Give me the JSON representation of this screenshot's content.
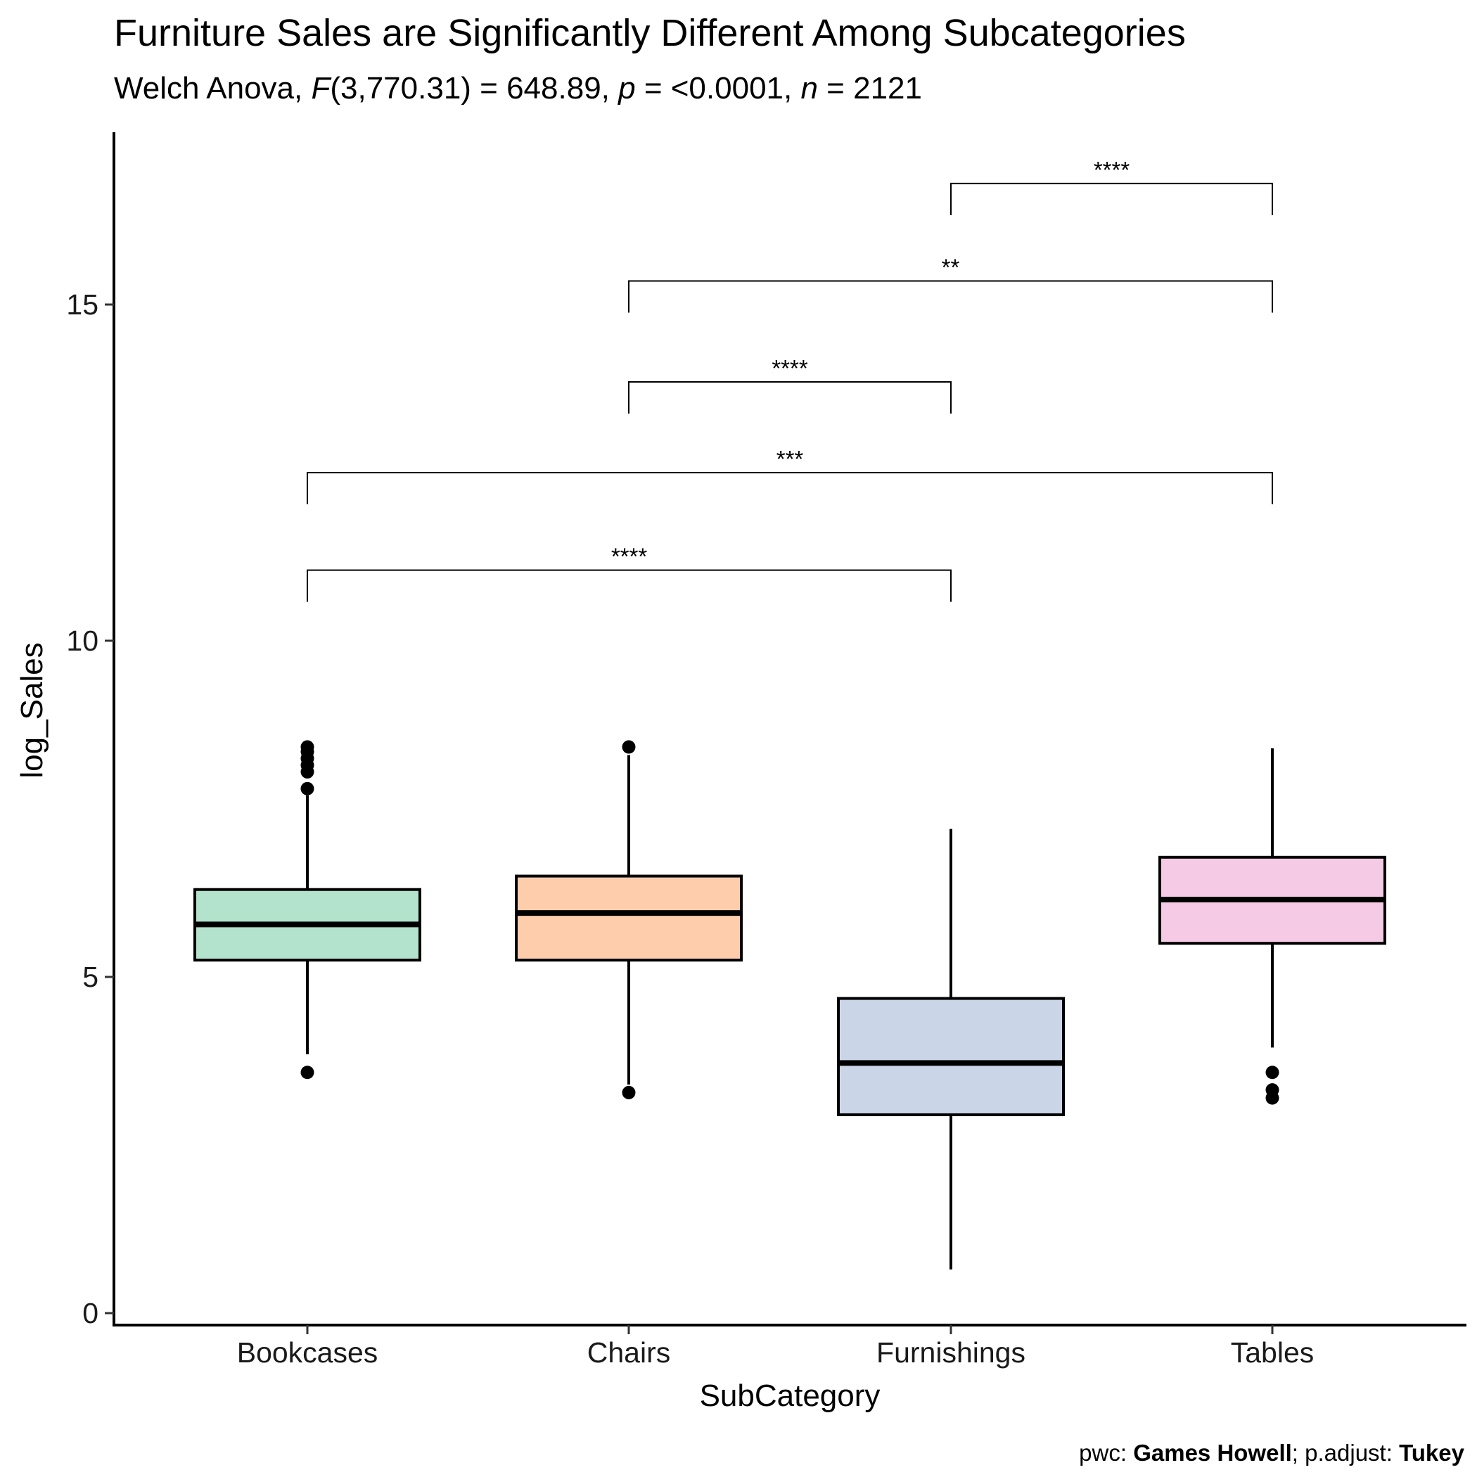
{
  "chart_data": {
    "type": "box",
    "title": "Furniture Sales are Significantly Different Among Subcategories",
    "subtitle": {
      "prefix": "Welch Anova, ",
      "stat_symbol": "F",
      "stat_value": "(3,770.31) = 648.89, ",
      "p_symbol": "p",
      "p_value": " = <0.0001, ",
      "n_symbol": "n",
      "n_value": " = 2121"
    },
    "xlabel": "SubCategory",
    "ylabel": "log_Sales",
    "ylim": [
      -0.5,
      17.8
    ],
    "yticks": [
      0,
      5,
      10,
      15
    ],
    "categories": [
      "Bookcases",
      "Chairs",
      "Furnishings",
      "Tables"
    ],
    "boxes": [
      {
        "category": "Bookcases",
        "q1": 5.25,
        "median": 5.78,
        "q3": 6.3,
        "whisker_low": 3.85,
        "whisker_high": 7.7,
        "outliers": [
          3.58,
          7.8,
          8.05,
          8.15,
          8.25,
          8.35,
          8.42
        ],
        "color": "#b3e2cd"
      },
      {
        "category": "Chairs",
        "q1": 5.25,
        "median": 5.95,
        "q3": 6.5,
        "whisker_low": 3.4,
        "whisker_high": 8.3,
        "outliers": [
          3.28,
          8.42
        ],
        "color": "#fdcdac"
      },
      {
        "category": "Furnishings",
        "q1": 2.95,
        "median": 3.72,
        "q3": 4.68,
        "whisker_low": 0.65,
        "whisker_high": 7.2,
        "outliers": [],
        "color": "#cbd5e8"
      },
      {
        "category": "Tables",
        "q1": 5.5,
        "median": 6.15,
        "q3": 6.78,
        "whisker_low": 3.95,
        "whisker_high": 8.4,
        "outliers": [
          3.58,
          3.32,
          3.2
        ],
        "color": "#f4cae4"
      }
    ],
    "comparisons": [
      {
        "from": "Bookcases",
        "to": "Furnishings",
        "y": 11.05,
        "label": "****"
      },
      {
        "from": "Bookcases",
        "to": "Tables",
        "y": 12.5,
        "label": "***"
      },
      {
        "from": "Chairs",
        "to": "Furnishings",
        "y": 13.85,
        "label": "****"
      },
      {
        "from": "Chairs",
        "to": "Tables",
        "y": 15.35,
        "label": "**"
      },
      {
        "from": "Furnishings",
        "to": "Tables",
        "y": 16.8,
        "label": "****"
      }
    ],
    "caption": {
      "pwc_prefix": "pwc: ",
      "pwc_method": "Games Howell",
      "adjust_prefix": "; p.adjust: ",
      "adjust_method": "Tukey"
    }
  }
}
